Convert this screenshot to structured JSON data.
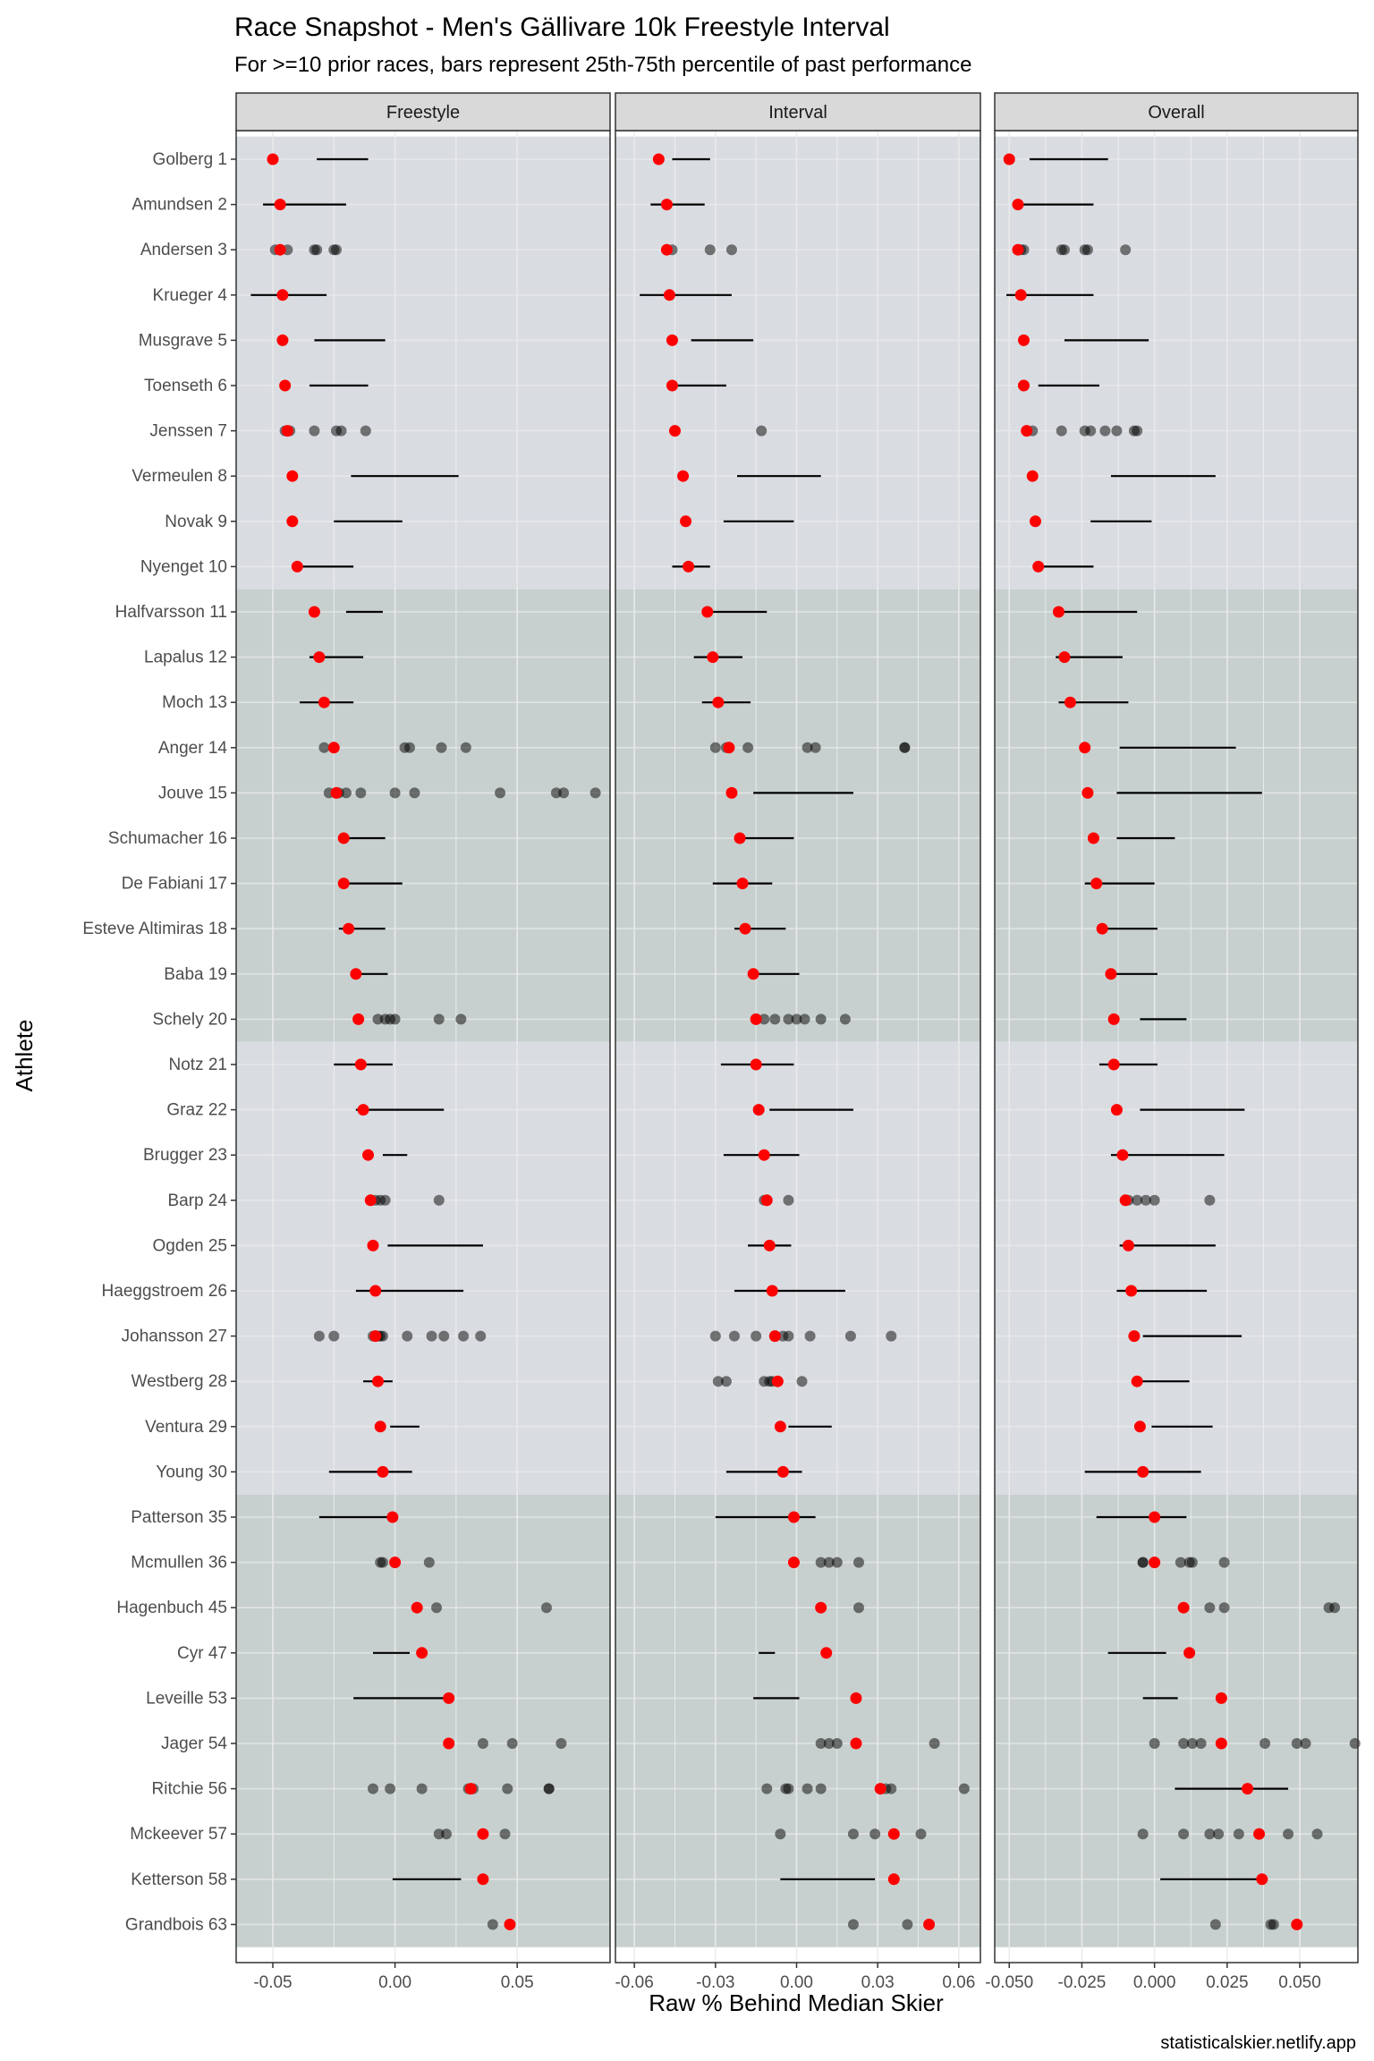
{
  "chart_data": {
    "type": "scatter",
    "title": "Race Snapshot -  Men's Gällivare 10k Freestyle Interval",
    "subtitle": "For >=10 prior races, bars represent 25th-75th percentile of past performance",
    "xlabel": "Raw % Behind Median Skier",
    "ylabel": "Athlete",
    "caption": "statisticalskier.netlify.app",
    "colors": {
      "current": "#ff0000",
      "past": "#000000",
      "band_a": "#d9dce1",
      "band_b": "#c8d0cf",
      "strip": "#d9d9d9"
    },
    "athletes": [
      "Golberg 1",
      "Amundsen 2",
      "Andersen 3",
      "Krueger 4",
      "Musgrave 5",
      "Toenseth 6",
      "Jenssen 7",
      "Vermeulen 8",
      "Novak 9",
      "Nyenget 10",
      "Halfvarsson 11",
      "Lapalus 12",
      "Moch 13",
      "Anger 14",
      "Jouve 15",
      "Schumacher 16",
      "De Fabiani 17",
      "Esteve Altimiras 18",
      "Baba 19",
      "Schely 20",
      "Notz 21",
      "Graz 22",
      "Brugger 23",
      "Barp 24",
      "Ogden 25",
      "Haeggstroem 26",
      "Johansson 27",
      "Westberg 28",
      "Ventura 29",
      "Young 30",
      "Patterson 35",
      "Mcmullen 36",
      "Hagenbuch 45",
      "Cyr 47",
      "Leveille 53",
      "Jager 54",
      "Ritchie 56",
      "Mckeever 57",
      "Ketterson 58",
      "Grandbois 63"
    ],
    "bands": [
      {
        "from": 0,
        "to": 9,
        "color": "band_a"
      },
      {
        "from": 10,
        "to": 19,
        "color": "band_b"
      },
      {
        "from": 20,
        "to": 29,
        "color": "band_a"
      },
      {
        "from": 30,
        "to": 39,
        "color": "band_b"
      }
    ],
    "panels": [
      {
        "name": "Freestyle",
        "xlim": [
          -0.065,
          0.088
        ],
        "ticks": [
          -0.05,
          0.0,
          0.05
        ],
        "tick_labels": [
          "-0.05",
          "0.00",
          "0.05"
        ],
        "current": [
          -0.05,
          -0.047,
          -0.047,
          -0.046,
          -0.046,
          -0.045,
          -0.044,
          -0.042,
          -0.042,
          -0.04,
          -0.033,
          -0.031,
          -0.029,
          -0.025,
          -0.024,
          -0.021,
          -0.021,
          -0.019,
          -0.016,
          -0.015,
          -0.014,
          -0.013,
          -0.011,
          -0.01,
          -0.009,
          -0.008,
          -0.008,
          -0.007,
          -0.006,
          -0.005,
          -0.001,
          0.0,
          0.009,
          0.011,
          0.022,
          0.022,
          0.031,
          0.036,
          0.036,
          0.047
        ],
        "ranges": [
          [
            -0.032,
            -0.011
          ],
          [
            -0.054,
            -0.02
          ],
          null,
          [
            -0.059,
            -0.028
          ],
          [
            -0.033,
            -0.004
          ],
          [
            -0.035,
            -0.011
          ],
          null,
          [
            -0.018,
            0.026
          ],
          [
            -0.025,
            0.003
          ],
          [
            -0.04,
            -0.017
          ],
          [
            -0.02,
            -0.005
          ],
          [
            -0.035,
            -0.013
          ],
          [
            -0.039,
            -0.017
          ],
          null,
          null,
          [
            -0.021,
            -0.004
          ],
          [
            -0.021,
            0.003
          ],
          [
            -0.023,
            -0.004
          ],
          [
            -0.018,
            -0.003
          ],
          null,
          [
            -0.025,
            -0.001
          ],
          [
            -0.016,
            0.02
          ],
          [
            -0.005,
            0.005
          ],
          null,
          [
            -0.003,
            0.036
          ],
          [
            -0.016,
            0.028
          ],
          null,
          [
            -0.013,
            -0.001
          ],
          [
            -0.002,
            0.01
          ],
          [
            -0.027,
            0.007
          ],
          [
            -0.031,
            -0.001
          ],
          null,
          null,
          [
            -0.009,
            0.006
          ],
          [
            -0.017,
            0.021
          ],
          null,
          null,
          null,
          [
            -0.001,
            0.027
          ],
          null
        ],
        "past": [
          [],
          [],
          [
            -0.049,
            -0.047,
            -0.044,
            -0.033,
            -0.032,
            -0.025,
            -0.024
          ],
          [],
          [],
          [],
          [
            -0.045,
            -0.043,
            -0.033,
            -0.024,
            -0.022,
            -0.012
          ],
          [],
          [],
          [],
          [],
          [],
          [],
          [
            -0.029,
            0.004,
            0.006,
            0.019,
            0.029
          ],
          [
            -0.027,
            -0.023,
            -0.02,
            -0.014,
            0.0,
            0.008,
            0.043,
            0.066,
            0.069,
            0.082
          ],
          [],
          [],
          [],
          [],
          [
            -0.007,
            -0.004,
            -0.002,
            0.0,
            0.018,
            0.027
          ],
          [],
          [],
          [],
          [
            -0.008,
            -0.006,
            -0.004,
            0.018
          ],
          [],
          [],
          [
            -0.031,
            -0.025,
            -0.009,
            -0.007,
            -0.006,
            -0.005,
            0.005,
            0.015,
            0.02,
            0.028,
            0.035
          ],
          [],
          [],
          [],
          [],
          [
            -0.006,
            -0.005,
            0.014
          ],
          [
            0.017,
            0.062
          ],
          [],
          [],
          [
            0.036,
            0.048,
            0.068
          ],
          [
            -0.009,
            -0.002,
            0.011,
            0.03,
            0.031,
            0.032,
            0.046,
            0.063,
            0.063
          ],
          [
            0.018,
            0.021,
            0.045
          ],
          [],
          [
            0.04
          ]
        ]
      },
      {
        "name": "Interval",
        "xlim": [
          -0.067,
          0.068
        ],
        "ticks": [
          -0.06,
          -0.03,
          0.0,
          0.03,
          0.06
        ],
        "tick_labels": [
          "-0.06",
          "-0.03",
          "0.00",
          "0.03",
          "0.06"
        ],
        "current": [
          -0.051,
          -0.048,
          -0.048,
          -0.047,
          -0.046,
          -0.046,
          -0.045,
          -0.042,
          -0.041,
          -0.04,
          -0.033,
          -0.031,
          -0.029,
          -0.025,
          -0.024,
          -0.021,
          -0.02,
          -0.019,
          -0.016,
          -0.015,
          -0.015,
          -0.014,
          -0.012,
          -0.011,
          -0.01,
          -0.009,
          -0.008,
          -0.007,
          -0.006,
          -0.005,
          -0.001,
          -0.001,
          0.009,
          0.011,
          0.022,
          0.022,
          0.031,
          0.036,
          0.036,
          0.049
        ],
        "ranges": [
          [
            -0.046,
            -0.032
          ],
          [
            -0.054,
            -0.034
          ],
          null,
          [
            -0.058,
            -0.024
          ],
          [
            -0.039,
            -0.016
          ],
          [
            -0.045,
            -0.026
          ],
          null,
          [
            -0.022,
            0.009
          ],
          [
            -0.027,
            -0.001
          ],
          [
            -0.046,
            -0.032
          ],
          [
            -0.035,
            -0.011
          ],
          [
            -0.038,
            -0.02
          ],
          [
            -0.035,
            -0.017
          ],
          null,
          [
            -0.016,
            0.021
          ],
          [
            -0.023,
            -0.001
          ],
          [
            -0.031,
            -0.009
          ],
          [
            -0.023,
            -0.004
          ],
          [
            -0.014,
            0.001
          ],
          null,
          [
            -0.028,
            -0.001
          ],
          [
            -0.01,
            0.021
          ],
          [
            -0.027,
            0.001
          ],
          null,
          [
            -0.018,
            -0.002
          ],
          [
            -0.023,
            0.018
          ],
          null,
          null,
          [
            -0.003,
            0.013
          ],
          [
            -0.026,
            0.002
          ],
          [
            -0.03,
            0.007
          ],
          null,
          null,
          [
            -0.014,
            -0.008
          ],
          [
            -0.016,
            0.001
          ],
          null,
          null,
          null,
          [
            -0.006,
            0.029
          ],
          null
        ],
        "past": [
          [],
          [],
          [
            -0.048,
            -0.046,
            -0.032,
            -0.024
          ],
          [],
          [],
          [],
          [
            -0.013
          ],
          [],
          [],
          [],
          [],
          [],
          [],
          [
            -0.03,
            -0.026,
            -0.025,
            -0.018,
            0.004,
            0.007,
            0.04,
            0.04
          ],
          [],
          [],
          [],
          [],
          [],
          [
            -0.015,
            -0.012,
            -0.008,
            -0.003,
            0.0,
            0.003,
            0.009,
            0.018
          ],
          [],
          [],
          [],
          [
            -0.012,
            -0.011,
            -0.003
          ],
          [],
          [],
          [
            -0.03,
            -0.023,
            -0.015,
            -0.008,
            -0.005,
            -0.003,
            0.005,
            0.02,
            0.035
          ],
          [
            -0.029,
            -0.026,
            -0.012,
            -0.01,
            -0.009,
            0.002
          ],
          [],
          [],
          [],
          [
            0.009,
            0.012,
            0.015,
            0.023
          ],
          [
            0.023
          ],
          [],
          [],
          [
            0.009,
            0.012,
            0.015,
            0.051
          ],
          [
            -0.011,
            -0.004,
            -0.003,
            0.004,
            0.009,
            0.031,
            0.033,
            0.035,
            0.062
          ],
          [
            -0.006,
            0.021,
            0.029,
            0.046
          ],
          [],
          [
            0.021,
            0.041
          ]
        ]
      },
      {
        "name": "Overall",
        "xlim": [
          -0.055,
          0.07
        ],
        "ticks": [
          -0.05,
          -0.025,
          0.0,
          0.025,
          0.05
        ],
        "tick_labels": [
          "-0.050",
          "-0.025",
          "0.000",
          "0.025",
          "0.050"
        ],
        "current": [
          -0.05,
          -0.047,
          -0.047,
          -0.046,
          -0.045,
          -0.045,
          -0.044,
          -0.042,
          -0.041,
          -0.04,
          -0.033,
          -0.031,
          -0.029,
          -0.024,
          -0.023,
          -0.021,
          -0.02,
          -0.018,
          -0.015,
          -0.014,
          -0.014,
          -0.013,
          -0.011,
          -0.01,
          -0.009,
          -0.008,
          -0.007,
          -0.006,
          -0.005,
          -0.004,
          0.0,
          0.0,
          0.01,
          0.012,
          0.023,
          0.023,
          0.032,
          0.036,
          0.037,
          0.049
        ],
        "ranges": [
          [
            -0.043,
            -0.016
          ],
          [
            -0.047,
            -0.021
          ],
          null,
          [
            -0.051,
            -0.021
          ],
          [
            -0.031,
            -0.002
          ],
          [
            -0.04,
            -0.019
          ],
          null,
          [
            -0.015,
            0.021
          ],
          [
            -0.022,
            -0.001
          ],
          [
            -0.039,
            -0.021
          ],
          [
            -0.035,
            -0.006
          ],
          [
            -0.034,
            -0.011
          ],
          [
            -0.033,
            -0.009
          ],
          [
            -0.012,
            0.028
          ],
          [
            -0.013,
            0.037
          ],
          [
            -0.013,
            0.007
          ],
          [
            -0.024,
            0.0
          ],
          [
            -0.018,
            0.001
          ],
          [
            -0.014,
            0.001
          ],
          [
            -0.005,
            0.011
          ],
          [
            -0.019,
            0.001
          ],
          [
            -0.005,
            0.031
          ],
          [
            -0.015,
            0.024
          ],
          null,
          [
            -0.012,
            0.021
          ],
          [
            -0.013,
            0.018
          ],
          [
            -0.004,
            0.03
          ],
          [
            -0.007,
            0.012
          ],
          [
            -0.001,
            0.02
          ],
          [
            -0.024,
            0.016
          ],
          [
            -0.02,
            0.011
          ],
          null,
          null,
          [
            -0.016,
            0.004
          ],
          [
            -0.004,
            0.008
          ],
          null,
          [
            0.007,
            0.046
          ],
          null,
          [
            0.002,
            0.036
          ],
          null
        ],
        "past": [
          [],
          [],
          [
            -0.046,
            -0.045,
            -0.032,
            -0.031,
            -0.024,
            -0.023,
            -0.01
          ],
          [],
          [],
          [],
          [
            -0.044,
            -0.042,
            -0.032,
            -0.024,
            -0.022,
            -0.017,
            -0.013,
            -0.007,
            -0.006
          ],
          [],
          [],
          [],
          [],
          [],
          [],
          [],
          [],
          [],
          [],
          [],
          [],
          [],
          [],
          [],
          [],
          [
            -0.01,
            -0.009,
            -0.006,
            -0.003,
            0.0,
            0.019
          ],
          [],
          [],
          [],
          [],
          [],
          [],
          [],
          [
            -0.004,
            -0.004,
            0.009,
            0.012,
            0.013,
            0.024
          ],
          [
            0.019,
            0.024,
            0.06,
            0.062
          ],
          [],
          [],
          [
            0.0,
            0.01,
            0.013,
            0.016,
            0.038,
            0.049,
            0.052,
            0.069
          ],
          [],
          [
            -0.004,
            0.01,
            0.019,
            0.022,
            0.029,
            0.046,
            0.056
          ],
          [],
          [
            0.021,
            0.04,
            0.041
          ]
        ]
      }
    ]
  }
}
